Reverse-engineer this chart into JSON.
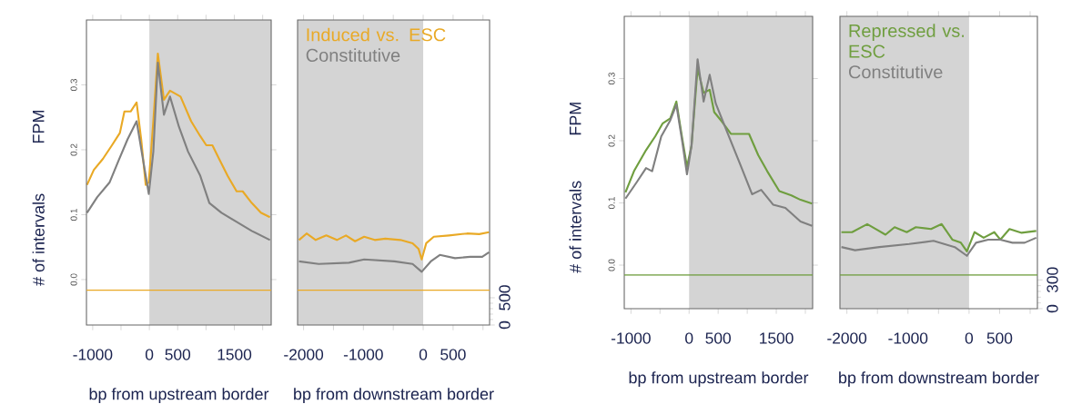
{
  "chart_data": [
    {
      "type": "line",
      "xlabel": "bp from upstream border",
      "ylabel": "FPM",
      "annotations": [
        "# of intervals"
      ],
      "xlim": [
        -1110,
        2150
      ],
      "ylim": [
        -0.07,
        0.4
      ],
      "xticks": [
        -1000,
        {
          "value": -500,
          "label": null
        },
        0,
        500,
        {
          "value": 1000,
          "label": null
        },
        1500,
        {
          "value": 2000,
          "label": null
        }
      ],
      "yticks": [
        {
          "value": 0,
          "label": "0.0"
        },
        {
          "value": 0.1,
          "label": "0.1"
        },
        {
          "value": 0.2,
          "label": "0.2"
        },
        {
          "value": 0.3,
          "label": "0.3"
        }
      ],
      "y2lim": [
        0,
        5600
      ],
      "bands": [
        {
          "axis": "x",
          "from": 0,
          "to": 2150,
          "color": "#d4d4d4"
        }
      ],
      "series": [
        {
          "color": "#e9a925",
          "x": [
            -1100,
            -980,
            -820,
            -660,
            -520,
            -440,
            -330,
            -225,
            -144,
            -64,
            -10,
            70,
            150,
            200,
            257,
            364,
            550,
            737,
            898,
            1005,
            1112,
            1219,
            1380,
            1540,
            1647,
            1807,
            1968,
            2128
          ],
          "values": [
            0.146,
            0.169,
            0.186,
            0.207,
            0.226,
            0.259,
            0.259,
            0.273,
            0.216,
            0.146,
            0.15,
            0.244,
            0.348,
            0.315,
            0.277,
            0.291,
            0.282,
            0.244,
            0.221,
            0.207,
            0.207,
            0.188,
            0.16,
            0.136,
            0.136,
            0.118,
            0.103,
            0.096
          ]
        },
        {
          "color": "#808080",
          "x": [
            -1100,
            -920,
            -700,
            -545,
            -385,
            -225,
            -118,
            -10,
            70,
            150,
            257,
            364,
            524,
            684,
            898,
            1059,
            1273,
            1540,
            1807,
            2128
          ],
          "values": [
            0.103,
            0.127,
            0.15,
            0.183,
            0.216,
            0.244,
            0.188,
            0.132,
            0.197,
            0.334,
            0.254,
            0.282,
            0.235,
            0.197,
            0.16,
            0.118,
            0.103,
            0.089,
            0.075,
            0.061
          ]
        },
        {
          "color": "#e9a925",
          "axis": "y2",
          "x": [
            -1110,
            2150
          ],
          "values": [
            640,
            640
          ]
        }
      ]
    },
    {
      "type": "line",
      "xlabel": "bp from downstream border",
      "legend": "top left",
      "tick_labels": [
        "x",
        "y2"
      ],
      "xlim": [
        -2100,
        1110
      ],
      "ylim": [
        -0.07,
        0.4
      ],
      "xticks": [
        -2000,
        {
          "value": -1500,
          "label": null
        },
        -1000,
        {
          "value": -500,
          "label": null
        },
        0,
        500,
        {
          "value": 1000,
          "label": null
        }
      ],
      "y2lim": [
        0,
        5600
      ],
      "y2ticks": [
        0,
        500
      ],
      "bands": [
        {
          "axis": "x",
          "from": -2100,
          "to": 0,
          "color": "#d4d4d4"
        }
      ],
      "series": [
        {
          "name": "Induced vs. ESC",
          "color": "#e9a925",
          "x": [
            -2076,
            -1949,
            -1797,
            -1620,
            -1443,
            -1291,
            -1139,
            -987,
            -810,
            -633,
            -380,
            -177,
            -76,
            -25,
            51,
            177,
            430,
            734,
            937,
            1100
          ],
          "values": [
            0.061,
            0.071,
            0.061,
            0.068,
            0.061,
            0.068,
            0.059,
            0.066,
            0.061,
            0.063,
            0.061,
            0.056,
            0.047,
            0.031,
            0.056,
            0.066,
            0.068,
            0.071,
            0.07,
            0.073
          ]
        },
        {
          "name": "Constitutive",
          "color": "#808080",
          "x": [
            -2076,
            -1747,
            -1241,
            -987,
            -481,
            -177,
            -25,
            127,
            278,
            532,
            785,
            987,
            1100
          ],
          "values": [
            0.028,
            0.024,
            0.026,
            0.031,
            0.028,
            0.024,
            0.012,
            0.028,
            0.038,
            0.033,
            0.035,
            0.035,
            0.042
          ]
        },
        {
          "color": "#e9a925",
          "axis": "y2",
          "x": [
            -2100,
            1110
          ],
          "values": [
            640,
            640
          ]
        }
      ]
    },
    {
      "type": "line",
      "xlabel": "bp from upstream border",
      "ylabel": "FPM",
      "annotations": [
        "# of intervals"
      ],
      "xlim": [
        -1115,
        2125
      ],
      "ylim": [
        -0.07,
        0.4
      ],
      "xticks": [
        -1000,
        {
          "value": -500,
          "label": null
        },
        0,
        500,
        {
          "value": 1000,
          "label": null
        },
        1500,
        {
          "value": 2000,
          "label": null
        }
      ],
      "yticks": [
        {
          "value": 0,
          "label": "0.0"
        },
        {
          "value": 0.1,
          "label": "0.1"
        },
        {
          "value": 0.2,
          "label": "0.2"
        },
        {
          "value": 0.3,
          "label": "0.3"
        }
      ],
      "y2lim": [
        0,
        3050
      ],
      "bands": [
        {
          "axis": "x",
          "from": 0,
          "to": 2125,
          "color": "#d4d4d4"
        }
      ],
      "series": [
        {
          "color": "#6f9e3f",
          "x": [
            -1094,
            -948,
            -740,
            -583,
            -453,
            -323,
            -219,
            -115,
            -36,
            42,
            146,
            250,
            354,
            432,
            563,
            719,
            1031,
            1188,
            1344,
            1552,
            1760,
            1917,
            2115
          ],
          "values": [
            0.117,
            0.151,
            0.185,
            0.207,
            0.228,
            0.236,
            0.263,
            0.202,
            0.158,
            0.192,
            0.316,
            0.277,
            0.282,
            0.246,
            0.231,
            0.211,
            0.211,
            0.177,
            0.151,
            0.119,
            0.112,
            0.105,
            0.099
          ]
        },
        {
          "color": "#808080",
          "x": [
            -1094,
            -896,
            -740,
            -635,
            -479,
            -323,
            -219,
            -115,
            -36,
            42,
            146,
            250,
            354,
            458,
            667,
            875,
            1083,
            1240,
            1448,
            1656,
            1917,
            2115
          ],
          "values": [
            0.107,
            0.134,
            0.156,
            0.151,
            0.207,
            0.233,
            0.258,
            0.197,
            0.146,
            0.192,
            0.331,
            0.263,
            0.306,
            0.26,
            0.211,
            0.163,
            0.114,
            0.121,
            0.097,
            0.092,
            0.07,
            0.063
          ]
        },
        {
          "color": "#6f9e3f",
          "axis": "y2",
          "x": [
            -1115,
            2125
          ],
          "values": [
            350,
            350
          ]
        }
      ]
    },
    {
      "type": "line",
      "xlabel": "bp from downstream border",
      "legend": "top left",
      "tick_labels": [
        "x",
        "y2"
      ],
      "xlim": [
        -2114,
        1119
      ],
      "ylim": [
        -0.07,
        0.4
      ],
      "xticks": [
        -2000,
        {
          "value": -1500,
          "label": null
        },
        -1000,
        {
          "value": -500,
          "label": null
        },
        0,
        500,
        {
          "value": 1000,
          "label": null
        }
      ],
      "y2lim": [
        0,
        3050
      ],
      "y2ticks": [
        0,
        300
      ],
      "bands": [
        {
          "axis": "x",
          "from": -2114,
          "to": 0,
          "color": "#d4d4d4"
        }
      ],
      "series": [
        {
          "name": "Repressed vs. ESC",
          "color": "#6f9e3f",
          "x": [
            -2090,
            -1915,
            -1667,
            -1368,
            -1219,
            -1020,
            -871,
            -622,
            -448,
            -274,
            -134,
            -35,
            90,
            239,
            413,
            512,
            662,
            861,
            1100
          ],
          "values": [
            0.053,
            0.053,
            0.066,
            0.049,
            0.061,
            0.053,
            0.061,
            0.058,
            0.066,
            0.041,
            0.036,
            0.022,
            0.053,
            0.044,
            0.053,
            0.041,
            0.058,
            0.052,
            0.055
          ]
        },
        {
          "name": "Constitutive",
          "color": "#808080",
          "x": [
            -2090,
            -1866,
            -1468,
            -980,
            -582,
            -234,
            -35,
            114,
            313,
            512,
            711,
            910,
            1100
          ],
          "values": [
            0.029,
            0.024,
            0.029,
            0.034,
            0.039,
            0.029,
            0.015,
            0.036,
            0.041,
            0.041,
            0.036,
            0.036,
            0.044
          ]
        },
        {
          "color": "#6f9e3f",
          "axis": "y2",
          "x": [
            -2114,
            1119
          ],
          "values": [
            350,
            350
          ]
        }
      ]
    }
  ]
}
